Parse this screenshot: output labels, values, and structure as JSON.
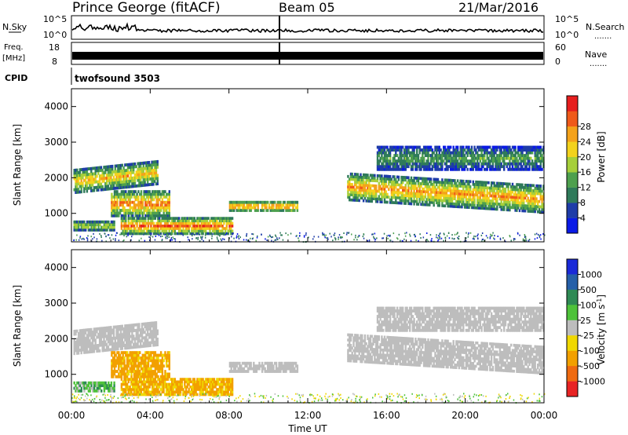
{
  "header": {
    "station": "Prince George (fitACF)",
    "beam": "Beam 05",
    "date": "21/Mar/2016"
  },
  "strips": {
    "nsky_label": "N.Sky",
    "nsky_ticks": [
      "10^5",
      "10^0"
    ],
    "nsearch_label": "N.Search",
    "nsearch_ticks": [
      "10^5",
      "10^0"
    ],
    "freq_label_line1": "Freq.",
    "freq_label_line2": "[MHz]",
    "freq_ticks": [
      "18",
      "8"
    ],
    "nave_label": "Nave",
    "nave_ticks": [
      "60",
      "0"
    ],
    "cpid_label": "CPID",
    "cpid_value": "twofsound 3503",
    "dotted_marker": "......."
  },
  "colors": {
    "power_scale": [
      "#0a1ae6",
      "#1e3ca8",
      "#2f7a5a",
      "#4ea04e",
      "#a6cf3a",
      "#f3d21c",
      "#f4a21a",
      "#ef5a1a",
      "#e61e1e"
    ],
    "velocity_scale": [
      "#1a2ad8",
      "#255fa8",
      "#2f8a55",
      "#4ec23a",
      "#bdbdbd",
      "#f0d800",
      "#f2a000",
      "#ef6a10",
      "#e82424"
    ]
  },
  "chart_data": [
    {
      "type": "heatmap",
      "name": "Power",
      "ylabel": "Slant Range [km]",
      "yticks": [
        "1000",
        "2000",
        "3000",
        "4000"
      ],
      "ylim": [
        200,
        4500
      ],
      "xlim_hours": [
        0,
        24
      ],
      "colorbar": {
        "label": "Power [dB]",
        "ticks": [
          "4",
          "8",
          "12",
          "16",
          "20",
          "24",
          "28"
        ],
        "range": [
          0,
          32
        ]
      },
      "features": [
        {
          "t0": 0.1,
          "t1": 4.4,
          "r0": 1550,
          "r1": 2250,
          "dB": 22
        },
        {
          "t0": 0.1,
          "t1": 2.2,
          "r0": 500,
          "r1": 800,
          "dB": 18
        },
        {
          "t0": 2.0,
          "t1": 5.0,
          "r0": 900,
          "r1": 1650,
          "dB": 26
        },
        {
          "t0": 2.5,
          "t1": 8.2,
          "r0": 400,
          "r1": 900,
          "dB": 27
        },
        {
          "t0": 8.0,
          "t1": 11.5,
          "r0": 1050,
          "r1": 1350,
          "dB": 26
        },
        {
          "t0": 14.0,
          "t1": 24.0,
          "r0": 1100,
          "r1": 1900,
          "dB": 24
        },
        {
          "t0": 15.5,
          "t1": 24.0,
          "r0": 2200,
          "r1": 2900,
          "dB": 12
        }
      ]
    },
    {
      "type": "heatmap",
      "name": "Velocity",
      "ylabel": "Slant Range [km]",
      "yticks": [
        "1000",
        "2000",
        "3000",
        "4000"
      ],
      "ylim": [
        200,
        4500
      ],
      "xlim_hours": [
        0,
        24
      ],
      "xlabel": "Time UT",
      "xticks": [
        "00:00",
        "04:00",
        "08:00",
        "12:00",
        "16:00",
        "20:00",
        "00:00"
      ],
      "colorbar": {
        "label": "Velocity [m s^-1]",
        "ticks": [
          "1000",
          "500",
          "100",
          "25",
          "-25",
          "-100",
          "-500",
          "-1000"
        ]
      },
      "features": [
        {
          "t0": 0.1,
          "t1": 4.4,
          "r0": 1550,
          "r1": 2250,
          "v": 0
        },
        {
          "t0": 0.1,
          "t1": 2.2,
          "r0": 500,
          "r1": 800,
          "v": 60
        },
        {
          "t0": 2.0,
          "t1": 5.0,
          "r0": 900,
          "r1": 1650,
          "v": -150
        },
        {
          "t0": 2.5,
          "t1": 8.2,
          "r0": 400,
          "r1": 900,
          "v": -130
        },
        {
          "t0": 8.0,
          "t1": 11.5,
          "r0": 1050,
          "r1": 1350,
          "v": 0
        },
        {
          "t0": 14.0,
          "t1": 24.0,
          "r0": 1100,
          "r1": 1900,
          "v": 0
        },
        {
          "t0": 15.5,
          "t1": 24.0,
          "r0": 2200,
          "r1": 2900,
          "v": 0
        }
      ]
    }
  ],
  "axis": {
    "xlabel": "Time UT",
    "xticks": [
      "00:00",
      "04:00",
      "08:00",
      "12:00",
      "16:00",
      "20:00",
      "00:00"
    ]
  }
}
